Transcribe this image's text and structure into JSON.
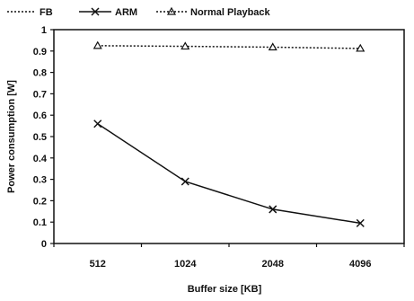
{
  "chart_data": {
    "type": "line",
    "title": "",
    "xlabel": "Buffer size [KB]",
    "ylabel": "Power consumption [W]",
    "categories": [
      "512",
      "1024",
      "2048",
      "4096"
    ],
    "ylim": [
      0,
      1
    ],
    "yticks": [
      "0",
      "0.1",
      "0.2",
      "0.3",
      "0.4",
      "0.5",
      "0.6",
      "0.7",
      "0.8",
      "0.9",
      "1"
    ],
    "grid": false,
    "legend_position": "top-left",
    "series": [
      {
        "name": "FB",
        "values": [
          null,
          null,
          null,
          null
        ],
        "marker": "none",
        "line": "dotted",
        "color": "#111111"
      },
      {
        "name": "ARM",
        "values": [
          0.56,
          0.29,
          0.16,
          0.095
        ],
        "marker": "x",
        "line": "solid",
        "color": "#111111"
      },
      {
        "name": "Normal Playback",
        "values": [
          0.925,
          0.922,
          0.918,
          0.912
        ],
        "marker": "triangle",
        "line": "dotted",
        "color": "#111111"
      }
    ]
  }
}
